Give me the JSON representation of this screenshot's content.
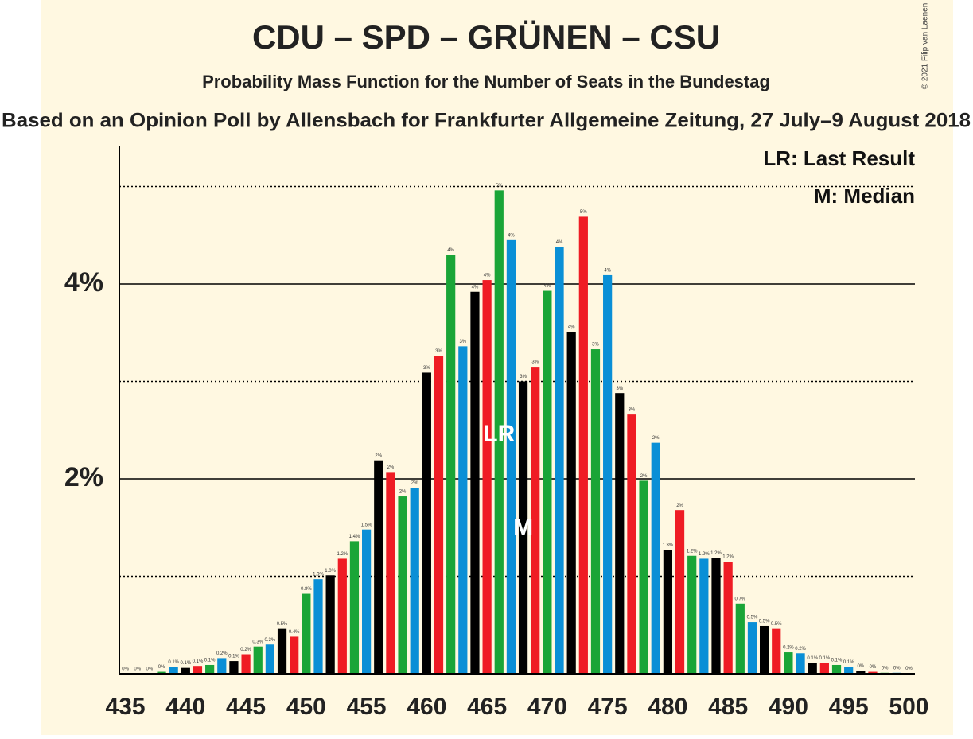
{
  "chart_data": {
    "type": "bar",
    "title": "CDU – SPD – GRÜNEN – CSU",
    "subtitle": "Probability Mass Function for the Number of Seats in the Bundestag",
    "caption": "Based on an Opinion Poll by Allensbach for Frankfurter Allgemeine Zeitung, 27 July–9 August 2018",
    "credit": "© 2021 Filip van Laenen",
    "legend": [
      "LR: Last Result",
      "M: Median"
    ],
    "x": [
      435,
      436,
      437,
      438,
      439,
      440,
      441,
      442,
      443,
      444,
      445,
      446,
      447,
      448,
      449,
      450,
      451,
      452,
      453,
      454,
      455,
      456,
      457,
      458,
      459,
      460,
      461,
      462,
      463,
      464,
      465,
      466,
      467,
      468,
      469,
      470,
      471,
      472,
      473,
      474,
      475,
      476,
      477,
      478,
      479,
      480,
      481,
      482,
      483,
      484,
      485,
      486,
      487,
      488,
      489,
      490,
      491,
      492,
      493,
      494,
      495,
      496,
      497,
      498,
      499,
      500
    ],
    "values": [
      0,
      0,
      0,
      0.02,
      0.07,
      0.06,
      0.08,
      0.09,
      0.16,
      0.13,
      0.2,
      0.28,
      0.3,
      0.46,
      0.38,
      0.82,
      0.97,
      1.01,
      1.18,
      1.36,
      1.48,
      2.19,
      2.07,
      1.82,
      1.91,
      3.09,
      3.26,
      4.3,
      3.36,
      3.92,
      4.04,
      4.96,
      4.45,
      3.0,
      3.15,
      3.93,
      4.38,
      3.51,
      4.69,
      3.33,
      4.09,
      2.88,
      2.66,
      1.98,
      2.37,
      1.27,
      1.68,
      1.21,
      1.18,
      1.19,
      1.15,
      0.72,
      0.53,
      0.49,
      0.46,
      0.22,
      0.21,
      0.11,
      0.11,
      0.09,
      0.07,
      0.03,
      0.02,
      0.01,
      0.01,
      0.005
    ],
    "value_labels": [
      "0%",
      "0%",
      "0%",
      "0%",
      "0.1%",
      "0.1%",
      "0.1%",
      "0.1%",
      "0.2%",
      "0.1%",
      "0.2%",
      "0.3%",
      "0.3%",
      "0.5%",
      "0.4%",
      "0.8%",
      "1.0%",
      "1.0%",
      "1.2%",
      "1.4%",
      "1.5%",
      "2%",
      "2%",
      "2%",
      "2%",
      "3%",
      "3%",
      "4%",
      "3%",
      "4%",
      "4%",
      "5%",
      "4%",
      "3%",
      "3%",
      "4%",
      "4%",
      "4%",
      "5%",
      "3%",
      "4%",
      "3%",
      "3%",
      "2%",
      "2%",
      "1.3%",
      "2%",
      "1.2%",
      "1.2%",
      "1.2%",
      "1.2%",
      "0.7%",
      "0.5%",
      "0.5%",
      "0.5%",
      "0.2%",
      "0.2%",
      "0.1%",
      "0.1%",
      "0.1%",
      "0.1%",
      "0%",
      "0%",
      "0%",
      "0%",
      "0%"
    ],
    "color_cycle": [
      "#0a8fd6",
      "#000000",
      "#ef1c24",
      "#1aa537"
    ],
    "xlim": [
      434.5,
      500.5
    ],
    "xticks": [
      435,
      440,
      445,
      450,
      455,
      460,
      465,
      470,
      475,
      480,
      485,
      490,
      495,
      500
    ],
    "ylim": [
      0,
      5.42
    ],
    "yticks": [
      {
        "value": 2,
        "label": "2%"
      },
      {
        "value": 4,
        "label": "4%"
      }
    ],
    "minor_yticks": [
      1,
      3,
      5
    ],
    "last_result": {
      "x": 466,
      "label": "LR"
    },
    "median": {
      "x": 468,
      "label": "M"
    }
  }
}
